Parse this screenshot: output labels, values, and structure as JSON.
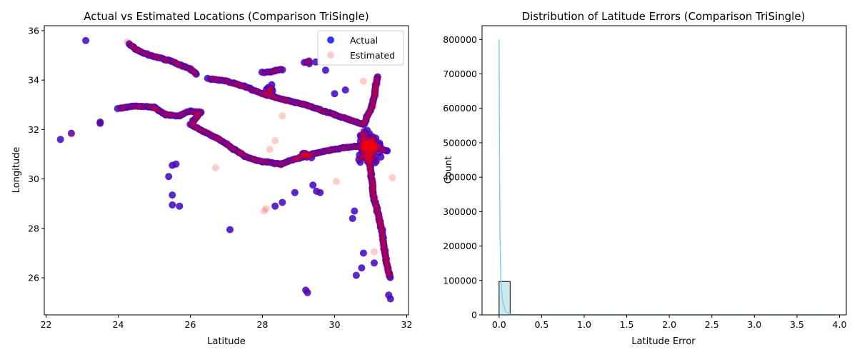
{
  "chart_data": [
    {
      "type": "scatter",
      "title": "Actual vs Estimated Locations (Comparison TriSingle)",
      "xlabel": "Latitude",
      "ylabel": "Longitude",
      "xlim": [
        21.95,
        32.05
      ],
      "ylim": [
        24.5,
        36.2
      ],
      "xticks": [
        22,
        24,
        26,
        28,
        30,
        32
      ],
      "yticks": [
        26,
        28,
        30,
        32,
        34,
        36
      ],
      "legend_position": "top-right",
      "series": [
        {
          "name": "Actual",
          "color": "#0000ff",
          "alpha": 0.8
        },
        {
          "name": "Estimated",
          "color": "#ff0000",
          "alpha": 0.2
        }
      ],
      "paths": [
        [
          [
            24.3,
            35.45
          ],
          [
            24.6,
            35.15
          ],
          [
            25.0,
            34.95
          ],
          [
            25.5,
            34.75
          ],
          [
            26.0,
            34.45
          ],
          [
            26.2,
            34.2
          ]
        ],
        [
          [
            26.5,
            34.05
          ],
          [
            27.0,
            33.95
          ],
          [
            27.5,
            33.75
          ],
          [
            28.0,
            33.45
          ],
          [
            28.6,
            33.2
          ],
          [
            29.2,
            33.0
          ],
          [
            29.6,
            32.8
          ],
          [
            30.0,
            32.6
          ],
          [
            30.5,
            32.35
          ],
          [
            30.8,
            32.2
          ]
        ],
        [
          [
            24.0,
            32.85
          ],
          [
            24.5,
            32.95
          ],
          [
            25.0,
            32.9
          ],
          [
            25.3,
            32.6
          ],
          [
            25.7,
            32.55
          ],
          [
            26.0,
            32.75
          ],
          [
            26.3,
            32.7
          ],
          [
            26.0,
            32.2
          ],
          [
            26.4,
            31.9
          ],
          [
            26.8,
            31.6
          ],
          [
            27.2,
            31.2
          ],
          [
            27.6,
            30.85
          ],
          [
            28.0,
            30.7
          ],
          [
            28.5,
            30.6
          ],
          [
            29.0,
            30.85
          ],
          [
            29.5,
            31.05
          ],
          [
            30.0,
            31.2
          ],
          [
            30.5,
            31.3
          ],
          [
            31.0,
            31.35
          ],
          [
            31.5,
            31.1
          ]
        ],
        [
          [
            30.9,
            31.0
          ],
          [
            31.0,
            30.4
          ],
          [
            31.05,
            29.8
          ],
          [
            31.1,
            29.2
          ],
          [
            31.2,
            28.6
          ],
          [
            31.3,
            28.0
          ],
          [
            31.35,
            27.5
          ],
          [
            31.4,
            27.0
          ],
          [
            31.45,
            26.5
          ],
          [
            31.55,
            25.95
          ]
        ],
        [
          [
            30.8,
            32.2
          ],
          [
            31.0,
            32.8
          ],
          [
            31.1,
            33.3
          ],
          [
            31.15,
            33.8
          ],
          [
            31.2,
            34.2
          ]
        ],
        [
          [
            28.0,
            34.3
          ],
          [
            28.3,
            34.35
          ],
          [
            28.6,
            34.45
          ]
        ]
      ],
      "clusters": [
        {
          "x": 30.95,
          "y": 31.25,
          "rx": 0.55,
          "ry": 0.9,
          "n": 90
        },
        {
          "x": 28.2,
          "y": 33.6,
          "rx": 0.35,
          "ry": 0.35,
          "n": 10
        },
        {
          "x": 29.3,
          "y": 34.7,
          "rx": 0.3,
          "ry": 0.1,
          "n": 6
        },
        {
          "x": 29.2,
          "y": 31.0,
          "rx": 0.35,
          "ry": 0.25,
          "n": 10
        }
      ],
      "isolated": [
        [
          22.4,
          31.6
        ],
        [
          22.7,
          31.85
        ],
        [
          23.1,
          35.6
        ],
        [
          23.5,
          32.3
        ],
        [
          23.5,
          32.25
        ],
        [
          25.4,
          30.1
        ],
        [
          25.5,
          30.55
        ],
        [
          25.6,
          30.6
        ],
        [
          25.5,
          29.35
        ],
        [
          25.5,
          28.95
        ],
        [
          25.7,
          28.9
        ],
        [
          27.1,
          27.95
        ],
        [
          28.35,
          28.9
        ],
        [
          28.55,
          29.05
        ],
        [
          28.9,
          29.45
        ],
        [
          29.2,
          25.5
        ],
        [
          29.25,
          25.4
        ],
        [
          29.4,
          29.75
        ],
        [
          29.5,
          29.5
        ],
        [
          29.6,
          29.45
        ],
        [
          29.75,
          34.4
        ],
        [
          30.0,
          33.45
        ],
        [
          30.3,
          33.6
        ],
        [
          30.5,
          28.4
        ],
        [
          30.55,
          28.7
        ],
        [
          30.6,
          26.1
        ],
        [
          30.75,
          26.4
        ],
        [
          30.8,
          27.0
        ],
        [
          31.1,
          26.6
        ],
        [
          31.5,
          25.3
        ],
        [
          31.55,
          25.15
        ]
      ],
      "estimated_outliers": [
        [
          22.7,
          31.8
        ],
        [
          24.25,
          35.55
        ],
        [
          26.7,
          30.45
        ],
        [
          28.05,
          28.7
        ],
        [
          28.1,
          28.8
        ],
        [
          28.2,
          31.2
        ],
        [
          28.35,
          31.55
        ],
        [
          28.55,
          32.55
        ],
        [
          30.05,
          29.9
        ],
        [
          30.8,
          33.95
        ],
        [
          31.1,
          27.05
        ],
        [
          31.6,
          30.05
        ]
      ]
    },
    {
      "type": "bar",
      "title": "Distribution of Latitude Errors (Comparison TriSingle)",
      "xlabel": "Latitude Error",
      "ylabel": "Count",
      "xlim": [
        -0.2,
        4.08
      ],
      "ylim": [
        0,
        840000
      ],
      "xticks": [
        0.0,
        0.5,
        1.0,
        1.5,
        2.0,
        2.5,
        3.0,
        3.5,
        4.0
      ],
      "yticks": [
        0,
        100000,
        200000,
        300000,
        400000,
        500000,
        600000,
        700000,
        800000
      ],
      "bars": [
        {
          "x0": 0.0,
          "x1": 0.13,
          "value": 97000
        }
      ],
      "kde": [
        [
          0.0,
          800000
        ],
        [
          0.003,
          600000
        ],
        [
          0.006,
          400000
        ],
        [
          0.01,
          250000
        ],
        [
          0.02,
          110000
        ],
        [
          0.04,
          40000
        ],
        [
          0.08,
          8000
        ],
        [
          0.15,
          1200
        ],
        [
          0.3,
          0
        ],
        [
          3.95,
          0
        ]
      ],
      "bar_fill": "#add8e6",
      "kde_color": "#87ceeb"
    }
  ]
}
